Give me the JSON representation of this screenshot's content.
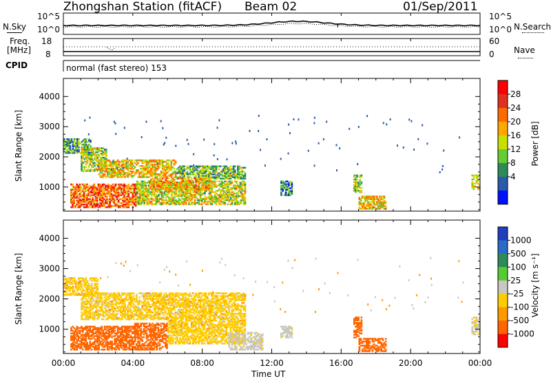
{
  "header": {
    "station": "Zhongshan Station (fitACF)",
    "beam": "Beam 02",
    "date": "01/Sep/2011"
  },
  "strips": {
    "nsky_label": "N.Sky",
    "nsky_ticks": [
      "10^5",
      "10^0"
    ],
    "nsearch_label": "N.Search",
    "nsearch_ticks": [
      "10^5",
      "10^0"
    ],
    "freq_label_1": "Freq.",
    "freq_label_2": "[MHz]",
    "freq_ticks": [
      "18",
      "8"
    ],
    "nave_label": "Nave",
    "nave_ticks": [
      "60",
      "0"
    ],
    "cpid_label": "CPID",
    "cpid_text": "normal (fast stereo) 153"
  },
  "axes": {
    "ylabel": "Slant Range [km]",
    "xlabel": "Time UT",
    "yticks": [
      "4000",
      "3000",
      "2000",
      "1000"
    ],
    "xticks": [
      "00:00",
      "04:00",
      "08:00",
      "12:00",
      "16:00",
      "20:00",
      "00:00"
    ]
  },
  "colorbars": {
    "power": {
      "label": "Power [dB]",
      "ticks": [
        "28",
        "24",
        "20",
        "16",
        "12",
        "8",
        "4"
      ],
      "colors": [
        "#ff0000",
        "#e03020",
        "#ff6a00",
        "#ffa800",
        "#c8e000",
        "#66cc33",
        "#2e8b57",
        "#2a5aa8",
        "#0010ff"
      ]
    },
    "velocity": {
      "label": "Velocity [m s⁻¹]",
      "ticks": [
        "1000",
        "500",
        "100",
        "25",
        "-25",
        "-100",
        "-500",
        "-1000"
      ],
      "colors": [
        "#1f3fbf",
        "#2a6ac8",
        "#2e8b57",
        "#55cc33",
        "#c8c8c0",
        "#ffcc00",
        "#ff9900",
        "#ff6600",
        "#ff0000"
      ]
    }
  },
  "chart_data": [
    {
      "type": "heatmap",
      "title": "Power",
      "xlabel": "Time UT",
      "ylabel": "Slant Range [km]",
      "xlim": [
        0,
        24
      ],
      "ylim": [
        200,
        4600
      ],
      "colorbar": "Power [dB]",
      "regions": [
        {
          "t0": 0.0,
          "t1": 1.6,
          "r0": 2100,
          "r1": 2600,
          "value": 10
        },
        {
          "t0": 1.0,
          "t1": 2.5,
          "r0": 1500,
          "r1": 2300,
          "value": 14
        },
        {
          "t0": 2.0,
          "t1": 6.5,
          "r0": 1300,
          "r1": 1900,
          "value": 18
        },
        {
          "t0": 6.5,
          "t1": 10.5,
          "r0": 1250,
          "r1": 1700,
          "value": 12
        },
        {
          "t0": 0.4,
          "t1": 4.2,
          "r0": 300,
          "r1": 1100,
          "value": 24
        },
        {
          "t0": 4.2,
          "t1": 10.5,
          "r0": 400,
          "r1": 1200,
          "value": 16
        },
        {
          "t0": 5.0,
          "t1": 8.5,
          "r0": 900,
          "r1": 1300,
          "value": 20
        },
        {
          "t0": 12.5,
          "t1": 13.2,
          "r0": 700,
          "r1": 1200,
          "value": 8
        },
        {
          "t0": 16.7,
          "t1": 17.2,
          "r0": 800,
          "r1": 1400,
          "value": 14
        },
        {
          "t0": 17.0,
          "t1": 18.6,
          "r0": 250,
          "r1": 700,
          "value": 18
        },
        {
          "t0": 23.5,
          "t1": 24.0,
          "r0": 900,
          "r1": 1400,
          "value": 16
        }
      ]
    },
    {
      "type": "heatmap",
      "title": "Velocity",
      "xlabel": "Time UT",
      "ylabel": "Slant Range [km]",
      "xlim": [
        0,
        24
      ],
      "ylim": [
        200,
        4600
      ],
      "colorbar": "Velocity [m s⁻¹]",
      "regions": [
        {
          "t0": 0.0,
          "t1": 2.0,
          "r0": 2100,
          "r1": 2700,
          "value": 0
        },
        {
          "t0": 1.0,
          "t1": 10.5,
          "r0": 1300,
          "r1": 2200,
          "value": 0
        },
        {
          "t0": 0.4,
          "t1": 4.0,
          "r0": 300,
          "r1": 1100,
          "value": -300
        },
        {
          "t0": 4.0,
          "t1": 6.0,
          "r0": 300,
          "r1": 1200,
          "value": -200
        },
        {
          "t0": 6.0,
          "t1": 10.5,
          "r0": 500,
          "r1": 1300,
          "value": 0
        },
        {
          "t0": 9.5,
          "t1": 11.5,
          "r0": 300,
          "r1": 900,
          "value": 50
        },
        {
          "t0": 12.5,
          "t1": 13.2,
          "r0": 700,
          "r1": 1100,
          "value": 50
        },
        {
          "t0": 16.7,
          "t1": 17.2,
          "r0": 700,
          "r1": 1400,
          "value": -300
        },
        {
          "t0": 17.0,
          "t1": 18.6,
          "r0": 250,
          "r1": 700,
          "value": -200
        },
        {
          "t0": 23.5,
          "t1": 24.0,
          "r0": 800,
          "r1": 1400,
          "value": 50
        }
      ]
    }
  ]
}
